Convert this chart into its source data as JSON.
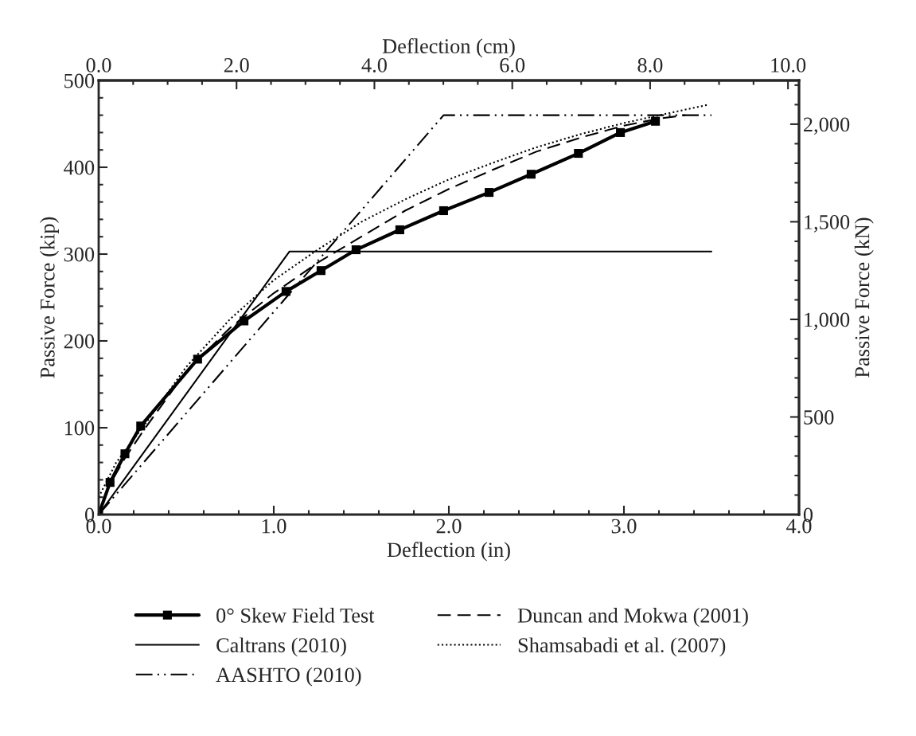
{
  "chart_data": {
    "type": "line",
    "xlabel": "Deflection (in)",
    "ylabel": "Passive Force (kip)",
    "x2label": "Deflection (cm)",
    "y2label": "Passive Force (kN)",
    "xlim": [
      0,
      4
    ],
    "xticks": [
      {
        "value": 0,
        "label": "0.0"
      },
      {
        "value": 1,
        "label": "1.0"
      },
      {
        "value": 2,
        "label": "2.0"
      },
      {
        "value": 3,
        "label": "3.0"
      },
      {
        "value": 4,
        "label": "4.0"
      }
    ],
    "ylim": [
      0,
      500
    ],
    "yticks": [
      0,
      100,
      200,
      300,
      400,
      500
    ],
    "x2lim": [
      0,
      10.16
    ],
    "x2ticks": [
      {
        "value": 0,
        "label": "0.0"
      },
      {
        "value": 2,
        "label": "2.0"
      },
      {
        "value": 4,
        "label": "4.0"
      },
      {
        "value": 6,
        "label": "6.0"
      },
      {
        "value": 8,
        "label": "8.0"
      },
      {
        "value": 10,
        "label": "10.0"
      }
    ],
    "y2lim": [
      0,
      2224
    ],
    "y2ticks": [
      0,
      500,
      {
        "value": 1000,
        "label": "1,000"
      },
      {
        "value": 1500,
        "label": "1,500"
      },
      {
        "value": 2000,
        "label": "2,000"
      }
    ],
    "grid": false,
    "legend": "bottom",
    "series": [
      {
        "name": "0° Skew Field Test",
        "color": "#000000",
        "marker": "square",
        "line_style": "solid",
        "x": [
          0,
          0.065,
          0.15,
          0.24,
          0.565,
          0.83,
          1.07,
          1.27,
          1.47,
          1.72,
          1.97,
          2.23,
          2.47,
          2.74,
          2.98,
          3.18
        ],
        "values": [
          0,
          37,
          70,
          102,
          179,
          223,
          257,
          281,
          305,
          328,
          350,
          371,
          392,
          416,
          440,
          453
        ]
      },
      {
        "name": "Caltrans (2010)",
        "color": "#000000",
        "marker": "none",
        "line_style": "solid",
        "x": [
          0,
          1.09,
          3.5
        ],
        "values": [
          0,
          303,
          303
        ]
      },
      {
        "name": "AASHTO (2010)",
        "color": "#000000",
        "marker": "none",
        "line_style": "dashdotdot",
        "x": [
          0,
          1.97,
          3.5
        ],
        "values": [
          0,
          460,
          460
        ]
      },
      {
        "name": "Duncan and Mokwa (2001)",
        "color": "#000000",
        "marker": "none",
        "line_style": "dashed",
        "x": [
          0,
          0.05,
          0.15,
          0.25,
          0.5,
          0.75,
          1.0,
          1.25,
          1.5,
          1.75,
          2.0,
          2.25,
          2.5,
          2.75,
          3.0,
          3.2,
          3.35
        ],
        "values": [
          0,
          30,
          65,
          95,
          165,
          215,
          255,
          290,
          320,
          350,
          375,
          397,
          418,
          434,
          448,
          456,
          460
        ]
      },
      {
        "name": "Shamsabadi et al. (2007)",
        "color": "#000000",
        "marker": "none",
        "line_style": "dotted",
        "x": [
          0,
          0.1,
          0.25,
          0.5,
          0.75,
          1.0,
          1.25,
          1.5,
          1.75,
          2.0,
          2.25,
          2.5,
          2.75,
          3.0,
          3.25,
          3.48
        ],
        "values": [
          20,
          60,
          100,
          170,
          225,
          270,
          305,
          337,
          363,
          386,
          405,
          423,
          438,
          451,
          462,
          472
        ]
      }
    ]
  }
}
